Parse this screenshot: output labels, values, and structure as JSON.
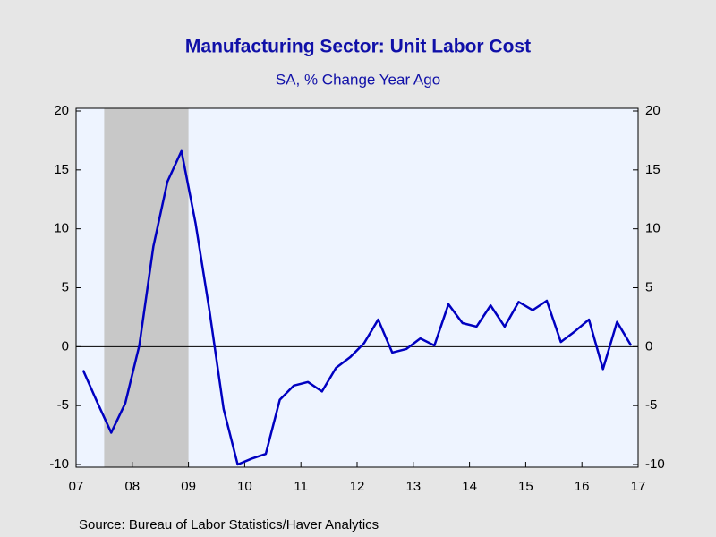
{
  "chart_data": {
    "type": "line",
    "title": "Manufacturing Sector: Unit Labor Cost",
    "subtitle": "SA, % Change Year Ago",
    "source": "Source:  Bureau of Labor Statistics/Haver Analytics",
    "x": [
      2007.125,
      2007.375,
      2007.625,
      2007.875,
      2008.125,
      2008.375,
      2008.625,
      2008.875,
      2009.125,
      2009.375,
      2009.625,
      2009.875,
      2010.125,
      2010.375,
      2010.625,
      2010.875,
      2011.125,
      2011.375,
      2011.625,
      2011.875,
      2012.125,
      2012.375,
      2012.625,
      2012.875,
      2013.125,
      2013.375,
      2013.625,
      2013.875,
      2014.125,
      2014.375,
      2014.625,
      2014.875,
      2015.125,
      2015.375,
      2015.625,
      2015.875,
      2016.125,
      2016.375,
      2016.625,
      2016.875
    ],
    "series": [
      {
        "color": "#0000c0",
        "values": [
          -2.0,
          -4.7,
          -7.3,
          -4.8,
          0.1,
          8.5,
          14.0,
          16.6,
          10.5,
          3.0,
          -5.3,
          -10.0,
          -9.5,
          -9.1,
          -4.5,
          -3.3,
          -3.0,
          -3.8,
          -1.8,
          -0.9,
          0.3,
          2.3,
          -0.5,
          -0.2,
          0.7,
          0.1,
          3.6,
          2.0,
          1.7,
          3.5,
          1.7,
          3.8,
          3.1,
          3.9,
          0.4,
          1.3,
          2.3,
          -1.9,
          2.1,
          0.1
        ]
      }
    ],
    "xlim": [
      2007,
      2017
    ],
    "xticks": [
      {
        "value": 2007,
        "label": "07"
      },
      {
        "value": 2008,
        "label": "08"
      },
      {
        "value": 2009,
        "label": "09"
      },
      {
        "value": 2010,
        "label": "10"
      },
      {
        "value": 2011,
        "label": "11"
      },
      {
        "value": 2012,
        "label": "12"
      },
      {
        "value": 2013,
        "label": "13"
      },
      {
        "value": 2014,
        "label": "14"
      },
      {
        "value": 2015,
        "label": "15"
      },
      {
        "value": 2016,
        "label": "16"
      },
      {
        "value": 2017,
        "label": "17"
      }
    ],
    "ylim": [
      -10,
      20
    ],
    "yticks": [
      -10,
      -5,
      0,
      5,
      10,
      15,
      20
    ],
    "y2lim": [
      -10,
      20
    ],
    "y2ticks": [
      -10,
      -5,
      0,
      5,
      10,
      15,
      20
    ],
    "shaded_periods": [
      [
        2007.5,
        2009.0
      ]
    ],
    "shade_color": "#c8c8c8",
    "zero_line": true
  }
}
